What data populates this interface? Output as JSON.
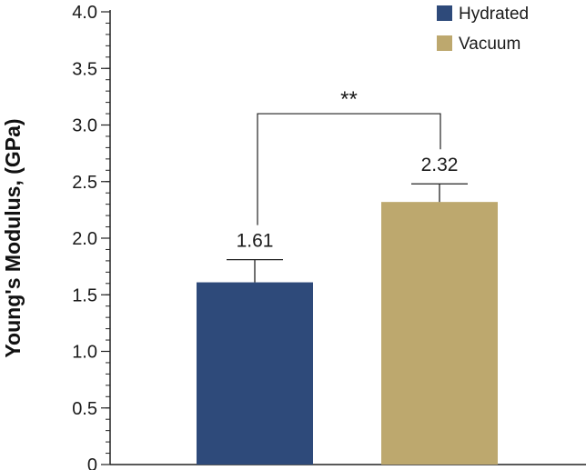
{
  "chart_data": {
    "type": "bar",
    "title": "",
    "xlabel": "",
    "ylabel": "Young's Modulus, (GPa)",
    "ylim": [
      0,
      4.0
    ],
    "yticks": [
      0,
      0.5,
      1.0,
      1.5,
      2.0,
      2.5,
      3.0,
      3.5,
      4.0
    ],
    "ytick_labels": [
      "0",
      "0.5",
      "1.0",
      "1.5",
      "2.0",
      "2.5",
      "3.0",
      "3.5",
      "4.0"
    ],
    "minor_tick_step": 0.1,
    "series": [
      {
        "name": "Hydrated",
        "value": 1.61,
        "error": 0.2,
        "label": "1.61",
        "color": "#2e4a7a"
      },
      {
        "name": "Vacuum",
        "value": 2.32,
        "error": 0.16,
        "label": "2.32",
        "color": "#bda86e"
      }
    ],
    "significance": {
      "label": "**",
      "bracket_level": 3.1
    },
    "legend": {
      "position": "top-right"
    }
  }
}
